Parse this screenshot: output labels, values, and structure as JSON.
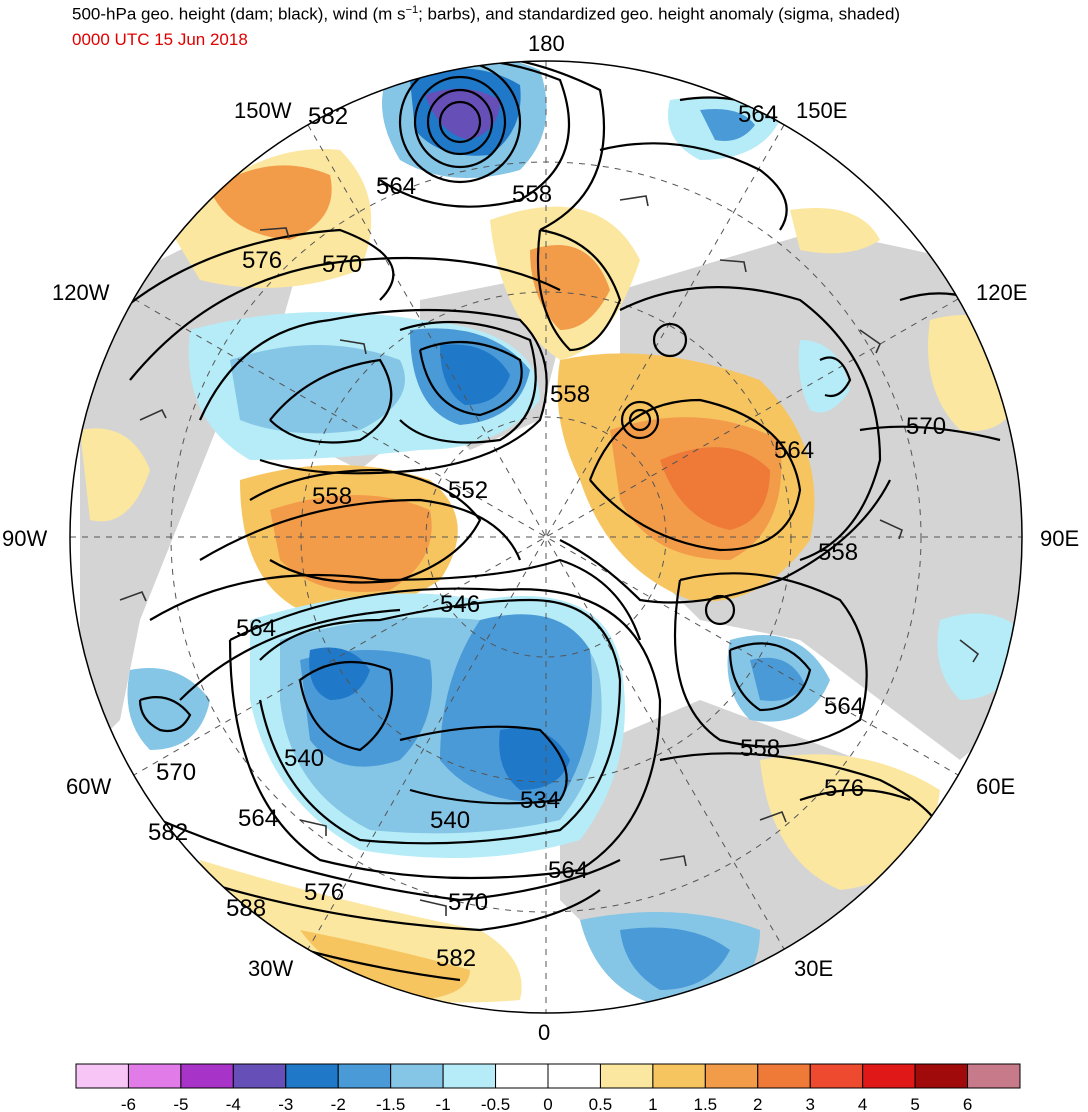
{
  "header": {
    "title_prefix": "500-hPa geo. height (dam; black), wind (m s",
    "title_exp": "−1",
    "title_suffix": "; barbs), and standardized geo. height anomaly (sigma, shaded)",
    "subtitle": "0000 UTC 15 Jun 2018"
  },
  "longitude_labels": {
    "top": "180",
    "bottom": "0",
    "left": "90W",
    "right": "90E",
    "w150": "150W",
    "e150": "150E",
    "w120": "120W",
    "e120": "120E",
    "w60": "60W",
    "e60": "60E",
    "w30": "30W",
    "e30": "30E"
  },
  "contour_labels": [
    "582",
    "564",
    "558",
    "576",
    "570",
    "564",
    "558",
    "552",
    "558",
    "546",
    "564",
    "570",
    "540",
    "564",
    "582",
    "588",
    "576",
    "570",
    "582",
    "540",
    "534",
    "564",
    "558",
    "564",
    "570",
    "576",
    "558"
  ],
  "colorbar": {
    "ticks": [
      "-6",
      "-5",
      "-4",
      "-3",
      "-2",
      "-1.5",
      "-1",
      "-0.5",
      "0",
      "0.5",
      "1",
      "1.5",
      "2",
      "3",
      "4",
      "5",
      "6"
    ],
    "colors": [
      "#f7c6f7",
      "#e07be8",
      "#a833c8",
      "#6650b8",
      "#1f78c8",
      "#4a9ad8",
      "#85c5e6",
      "#b6ecf7",
      "#ffffff",
      "#ffffff",
      "#fbe7a0",
      "#f7c560",
      "#f29c4a",
      "#ef7a38",
      "#ee4a30",
      "#e01818",
      "#a00a0a",
      "#c77a8a"
    ]
  },
  "colors": {
    "land": "#d4d4d4",
    "ocean": "#ffffff",
    "contour": "#000000"
  }
}
